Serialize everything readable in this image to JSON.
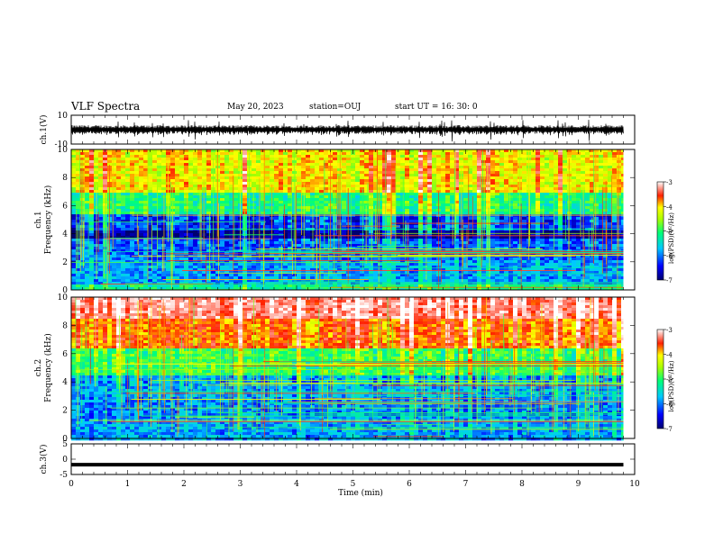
{
  "header": {
    "title": "VLF Spectra",
    "date": "May 20, 2023",
    "station": "station=OUJ",
    "start": "start  UT =   16: 30: 0"
  },
  "chart_data": [
    {
      "type": "line",
      "panel": "ch1-waveform",
      "ylabel": "ch.1(V)",
      "ylim": [
        -10,
        10
      ],
      "yticks": [
        "10",
        "-10"
      ],
      "xlim": [
        0,
        10
      ],
      "x_end": 9.8,
      "baseline": 0,
      "color": "#000000"
    },
    {
      "type": "heatmap",
      "panel": "ch1-spectrogram",
      "ylabel": "ch.1\nFrequency  (kHz)",
      "ylabel_lines": [
        "ch.1",
        "Frequency  (kHz)"
      ],
      "ylim": [
        0,
        10
      ],
      "yticks": [
        "0",
        "2",
        "4",
        "6",
        "8",
        "10"
      ],
      "xlim": [
        0,
        10
      ],
      "x_end": 9.8,
      "colorbar": {
        "label": "log(PSD)(V²/Hz)",
        "ticks": [
          "-3",
          "-4",
          "-5",
          "-6",
          "-7"
        ],
        "range": [
          -7,
          -3
        ]
      },
      "bands_kHz": [
        [
          0,
          0.5,
          -5.4
        ],
        [
          0.5,
          2.2,
          -6.0
        ],
        [
          2.2,
          3.7,
          -6.2
        ],
        [
          3.7,
          4.4,
          -6.9
        ],
        [
          4.4,
          5.4,
          -6.3
        ],
        [
          5.4,
          7.0,
          -5.3
        ],
        [
          7.0,
          10,
          -4.4
        ]
      ]
    },
    {
      "type": "heatmap",
      "panel": "ch2-spectrogram",
      "ylabel": "ch.2\nFrequency  (kHz)",
      "ylabel_lines": [
        "ch.2",
        "Frequency  (kHz)"
      ],
      "ylim": [
        0,
        10
      ],
      "yticks": [
        "0",
        "2",
        "4",
        "6",
        "8",
        "10"
      ],
      "xlim": [
        0,
        10
      ],
      "x_end": 9.8,
      "colorbar": {
        "label": "log(PSD)(V²/Hz)",
        "ticks": [
          "-3",
          "-4",
          "-5",
          "-6",
          "-7"
        ],
        "range": [
          -7,
          -3
        ]
      },
      "bands_kHz": [
        [
          0,
          1.5,
          -6.0
        ],
        [
          1.5,
          3.0,
          -6.1
        ],
        [
          3.0,
          4.5,
          -6.0
        ],
        [
          4.5,
          6.5,
          -5.2
        ],
        [
          6.5,
          8.5,
          -4.0
        ],
        [
          8.5,
          10,
          -3.4
        ]
      ]
    },
    {
      "type": "line",
      "panel": "ch3-waveform",
      "ylabel": "ch.3(V)",
      "ylim": [
        -5,
        5
      ],
      "yticks": [
        "5",
        "0",
        "-5"
      ],
      "xlim": [
        0,
        10
      ],
      "x_end": 9.8,
      "constant_value": -1.8,
      "color": "#000000"
    }
  ],
  "x_axis": {
    "label": "Time  (min)",
    "ticks": [
      "0",
      "1",
      "2",
      "3",
      "4",
      "5",
      "6",
      "7",
      "8",
      "9",
      "10"
    ]
  }
}
